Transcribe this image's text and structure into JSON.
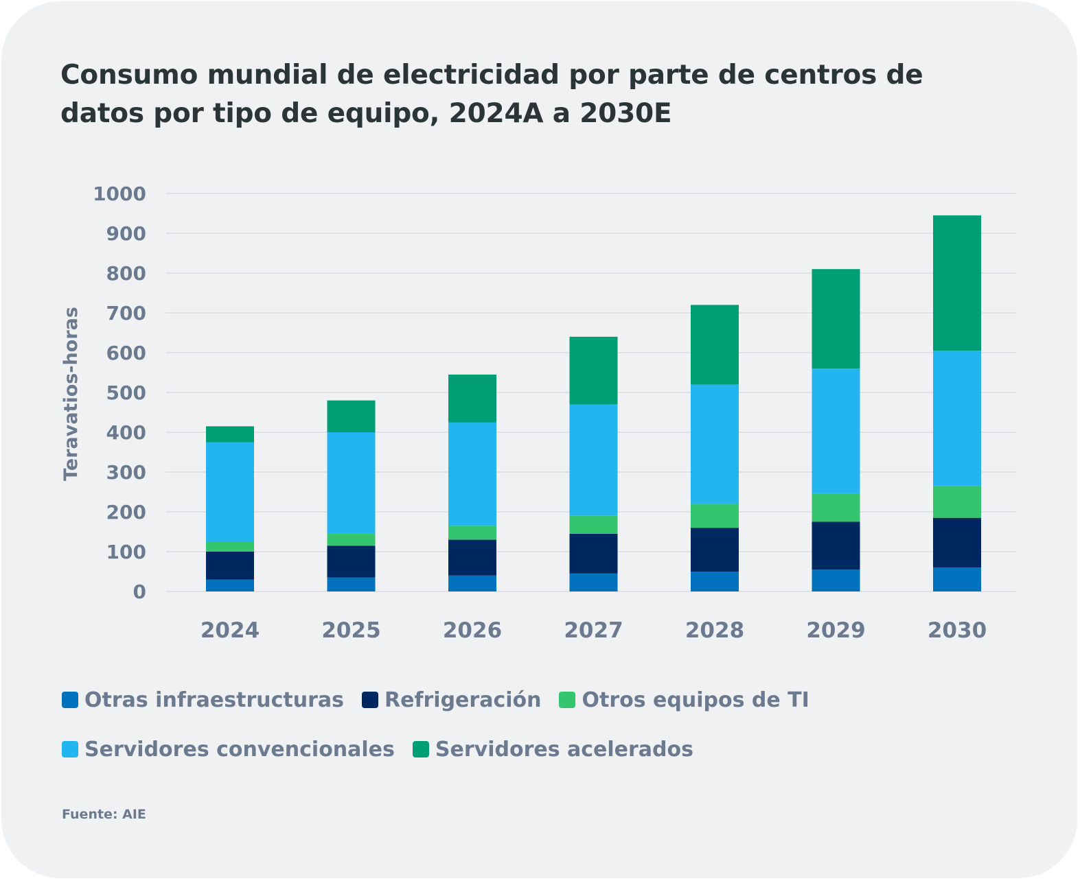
{
  "title": "Consumo mundial de electricidad por parte de centros de datos por tipo de equipo, 2024A a 2030E",
  "source": "Fuente: AIE",
  "chart_data": {
    "type": "bar",
    "stacked": true,
    "title": "Consumo mundial de electricidad por parte de centros de datos por tipo de equipo, 2024A a 2030E",
    "xlabel": "",
    "ylabel": "Teravatios-horas",
    "ylim": [
      0,
      1000
    ],
    "yticks": [
      0,
      100,
      200,
      300,
      400,
      500,
      600,
      700,
      800,
      900,
      1000
    ],
    "grid": true,
    "legend_position": "bottom",
    "categories": [
      "2024",
      "2025",
      "2026",
      "2027",
      "2028",
      "2029",
      "2030"
    ],
    "series": [
      {
        "name": "Otras infraestructuras",
        "color": "#0071bc",
        "values": [
          30,
          35,
          40,
          45,
          50,
          55,
          60
        ]
      },
      {
        "name": "Refrigeración",
        "color": "#002860",
        "values": [
          70,
          80,
          90,
          100,
          110,
          120,
          125
        ]
      },
      {
        "name": "Otros equipos de TI",
        "color": "#35c56e",
        "values": [
          25,
          30,
          35,
          45,
          60,
          70,
          80
        ]
      },
      {
        "name": "Servidores convencionales",
        "color": "#22b5ef",
        "values": [
          250,
          255,
          260,
          280,
          300,
          315,
          340
        ]
      },
      {
        "name": "Servidores acelerados",
        "color": "#009e73",
        "values": [
          40,
          80,
          120,
          170,
          200,
          250,
          340
        ]
      }
    ]
  }
}
